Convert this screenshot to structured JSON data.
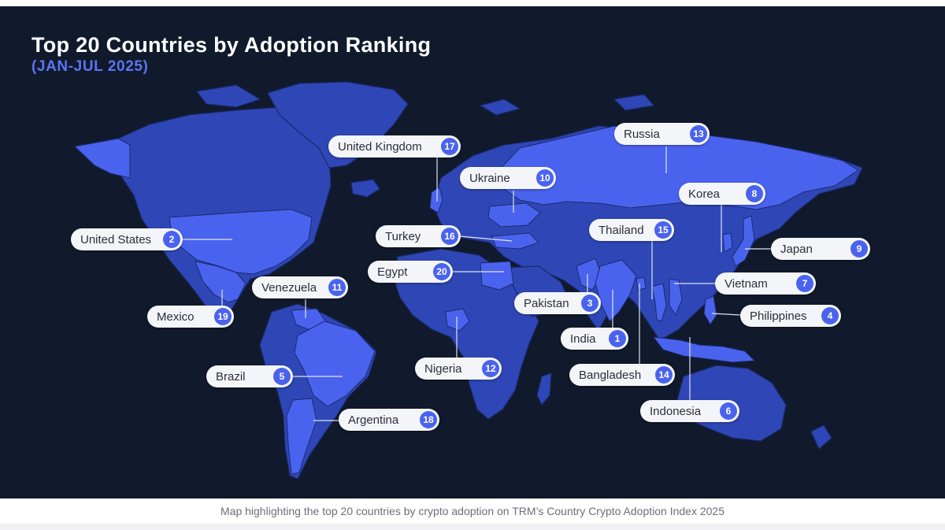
{
  "header": {
    "title": "Top 20 Countries by Adoption Ranking",
    "subtitle": "(JAN-JUL 2025)"
  },
  "caption": "Map highlighting the top 20 countries by crypto adoption on TRM’s Country Crypto Adoption Index 2025",
  "colors": {
    "background": "#101a2c",
    "land": "#2f47b6",
    "highlight": "#4a63ee",
    "borders": "#1b2a6e",
    "badge": "#4a63ee",
    "pill": "#f4f5f8"
  },
  "countries": [
    {
      "id": "india",
      "name": "India",
      "rank": "1"
    },
    {
      "id": "united-states",
      "name": "United States",
      "rank": "2"
    },
    {
      "id": "pakistan",
      "name": "Pakistan",
      "rank": "3"
    },
    {
      "id": "philippines",
      "name": "Philippines",
      "rank": "4"
    },
    {
      "id": "brazil",
      "name": "Brazil",
      "rank": "5"
    },
    {
      "id": "indonesia",
      "name": "Indonesia",
      "rank": "6"
    },
    {
      "id": "vietnam",
      "name": "Vietnam",
      "rank": "7"
    },
    {
      "id": "korea",
      "name": "Korea",
      "rank": "8"
    },
    {
      "id": "japan",
      "name": "Japan",
      "rank": "9"
    },
    {
      "id": "ukraine",
      "name": "Ukraine",
      "rank": "10"
    },
    {
      "id": "venezuela",
      "name": "Venezuela",
      "rank": "11"
    },
    {
      "id": "nigeria",
      "name": "Nigeria",
      "rank": "12"
    },
    {
      "id": "russia",
      "name": "Russia",
      "rank": "13"
    },
    {
      "id": "bangladesh",
      "name": "Bangladesh",
      "rank": "14"
    },
    {
      "id": "thailand",
      "name": "Thailand",
      "rank": "15"
    },
    {
      "id": "turkey",
      "name": "Turkey",
      "rank": "16"
    },
    {
      "id": "united-kingdom",
      "name": "United Kingdom",
      "rank": "17"
    },
    {
      "id": "argentina",
      "name": "Argentina",
      "rank": "18"
    },
    {
      "id": "mexico",
      "name": "Mexico",
      "rank": "19"
    },
    {
      "id": "egypt",
      "name": "Egypt",
      "rank": "20"
    }
  ]
}
